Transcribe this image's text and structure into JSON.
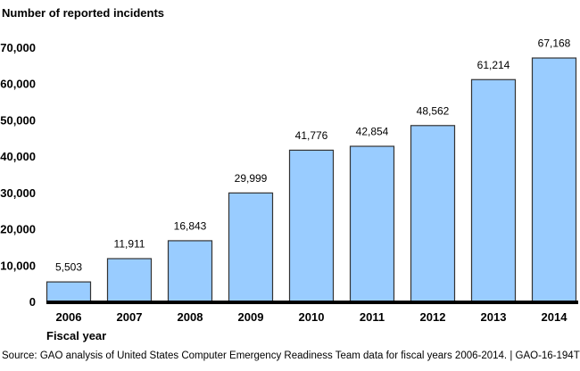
{
  "chart_data": {
    "type": "bar",
    "title": "",
    "ylabel": "Number of reported incidents",
    "xlabel": "Fiscal year",
    "categories": [
      "2006",
      "2007",
      "2008",
      "2009",
      "2010",
      "2011",
      "2012",
      "2013",
      "2014"
    ],
    "values": [
      5503,
      11911,
      16843,
      29999,
      41776,
      42854,
      48562,
      61214,
      67168
    ],
    "value_labels": [
      "5,503",
      "11,911",
      "16,843",
      "29,999",
      "41,776",
      "42,854",
      "48,562",
      "61,214",
      "67,168"
    ],
    "ylim": [
      0,
      70000
    ],
    "yticks": [
      0,
      10000,
      20000,
      30000,
      40000,
      50000,
      60000,
      70000
    ],
    "ytick_labels": [
      "0",
      "10,000",
      "20,000",
      "30,000",
      "40,000",
      "50,000",
      "60,000",
      "70,000"
    ],
    "grid": false,
    "legend": "none",
    "bar_color": "#99ccff",
    "bar_edge_color": "#333333"
  },
  "source": "Source: GAO analysis of United States Computer Emergency Readiness Team data for fiscal years 2006-2014.  |  GAO-16-194T"
}
